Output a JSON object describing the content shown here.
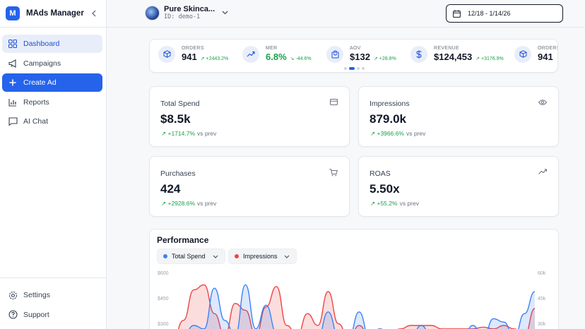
{
  "brand": {
    "logo_letter": "M",
    "name": "MAds Manager"
  },
  "nav": {
    "items": [
      {
        "label": "Dashboard",
        "icon": "dashboard-icon"
      },
      {
        "label": "Campaigns",
        "icon": "megaphone-icon"
      },
      {
        "label": "Create Ad",
        "icon": "plus-icon"
      },
      {
        "label": "Reports",
        "icon": "bar-chart-icon"
      },
      {
        "label": "AI Chat",
        "icon": "chat-icon"
      }
    ],
    "bottom": [
      {
        "label": "Settings",
        "icon": "gear-icon"
      },
      {
        "label": "Support",
        "icon": "help-icon"
      }
    ]
  },
  "header": {
    "store_name": "Pure Skinca...",
    "store_id": "ID: demo-1",
    "date_range": "12/18 - 1/14/26"
  },
  "kpis": [
    {
      "label": "ORDERS",
      "value": "941",
      "delta": "↗ +2443.2%",
      "icon": "box-icon"
    },
    {
      "label": "MER",
      "value": "6.8%",
      "delta": "↘ -44.6%",
      "icon": "trend-up-icon"
    },
    {
      "label": "AOV",
      "value": "$132",
      "delta": "↗ +28.8%",
      "icon": "bag-icon"
    },
    {
      "label": "REVENUE",
      "value": "$124,453",
      "delta": "↗ +3176.9%",
      "icon": "dollar-icon"
    },
    {
      "label": "ORDERS",
      "value": "941",
      "delta": "",
      "icon": "box-icon"
    }
  ],
  "carousel": {
    "pages": 4,
    "active_index": 1
  },
  "cards": [
    {
      "title": "Total Spend",
      "value": "$8.5k",
      "delta": "↗ +1714.7%",
      "vs": "vs prev",
      "icon": "card-icon"
    },
    {
      "title": "Impressions",
      "value": "879.0k",
      "delta": "↗ +3966.6%",
      "vs": "vs prev",
      "icon": "eye-icon"
    },
    {
      "title": "Purchases",
      "value": "424",
      "delta": "↗ +2928.6%",
      "vs": "vs prev",
      "icon": "cart-icon"
    },
    {
      "title": "ROAS",
      "value": "5.50x",
      "delta": "↗ +55.2%",
      "vs": "vs prev",
      "icon": "trend-up-icon"
    }
  ],
  "performance": {
    "title": "Performance",
    "metric_left": "Total Spend",
    "metric_right": "Impressions"
  },
  "colors": {
    "accent": "#2563eb",
    "spend": "#3b82f6",
    "impressions": "#ef4444",
    "positive": "#16a34a"
  },
  "chart_data": {
    "type": "area",
    "y_left_ticks": [
      "$600",
      "$450",
      "$300"
    ],
    "y_right_ticks": [
      "60k",
      "45k",
      "30k"
    ],
    "series": [
      {
        "name": "Total Spend",
        "axis": "left",
        "values": [
          220,
          240,
          300,
          280,
          520,
          330,
          240,
          540,
          280,
          420,
          260,
          230,
          230,
          230,
          230,
          380,
          240,
          230,
          380,
          230,
          280,
          240,
          230,
          230,
          300,
          240,
          230,
          230,
          230,
          300,
          230,
          340,
          320,
          230,
          370,
          500
        ]
      },
      {
        "name": "Impressions",
        "axis": "right",
        "values": [
          22000,
          33000,
          51000,
          54000,
          37000,
          24000,
          43000,
          39000,
          24000,
          41000,
          53000,
          30000,
          24000,
          37000,
          30000,
          50000,
          31000,
          22000,
          30000,
          24000,
          28000,
          26000,
          28000,
          30000,
          30000,
          30000,
          28000,
          28000,
          28000,
          28000,
          29000,
          28000,
          30000,
          28000,
          24000,
          40000
        ]
      }
    ]
  }
}
